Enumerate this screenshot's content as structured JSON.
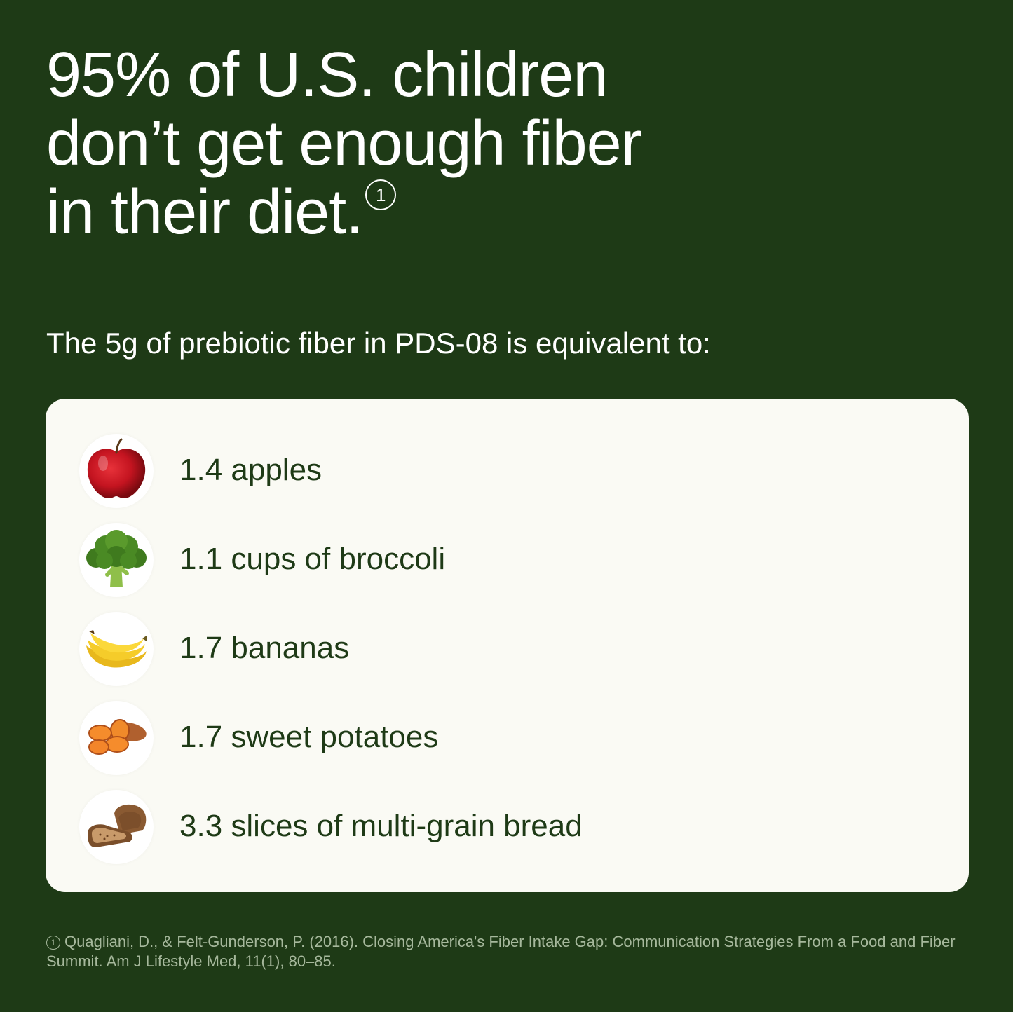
{
  "headline": {
    "line1": "95% of U.S. children",
    "line2": "don’t get enough fiber",
    "line3": "in their diet.",
    "footnote_mark": "1"
  },
  "subhead": "The 5g of prebiotic fiber in PDS-08 is equivalent to:",
  "items": [
    {
      "label": "1.4 apples",
      "icon": "apple-icon"
    },
    {
      "label": "1.1 cups of broccoli",
      "icon": "broccoli-icon"
    },
    {
      "label": "1.7 bananas",
      "icon": "banana-icon"
    },
    {
      "label": "1.7 sweet potatoes",
      "icon": "sweet-potato-icon"
    },
    {
      "label": "3.3 slices of multi-grain bread",
      "icon": "bread-icon"
    }
  ],
  "footnote": {
    "mark": "1",
    "text": "Quagliani, D., & Felt-Gunderson, P. (2016). Closing America's Fiber Intake Gap: Communication Strategies From a Food and Fiber Summit. Am J Lifestyle Med, 11(1), 80–85."
  },
  "colors": {
    "background": "#1e3a16",
    "card": "#fafaf4",
    "text_dark": "#1e3a16",
    "text_light": "#ffffff",
    "footnote": "#a6b89c"
  }
}
